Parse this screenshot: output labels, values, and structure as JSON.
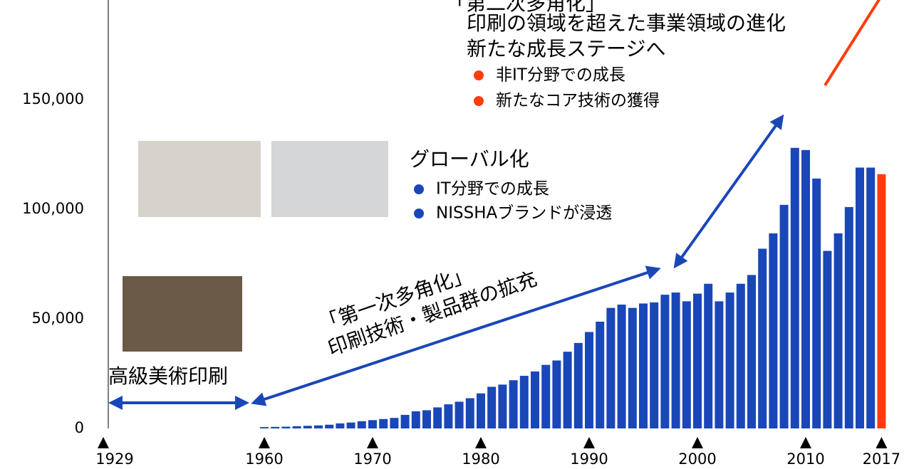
{
  "chart_data": {
    "type": "bar",
    "x": [
      1960,
      1961,
      1962,
      1963,
      1964,
      1965,
      1966,
      1967,
      1968,
      1969,
      1970,
      1971,
      1972,
      1973,
      1974,
      1975,
      1976,
      1977,
      1978,
      1979,
      1980,
      1981,
      1982,
      1983,
      1984,
      1985,
      1986,
      1987,
      1988,
      1989,
      1990,
      1991,
      1992,
      1993,
      1994,
      1995,
      1996,
      1997,
      1998,
      1999,
      2000,
      2001,
      2002,
      2003,
      2004,
      2005,
      2006,
      2007,
      2008,
      2009,
      2010,
      2011,
      2012,
      2013,
      2014,
      2015,
      2016,
      2017
    ],
    "values": [
      600,
      700,
      800,
      1000,
      1200,
      1400,
      1700,
      2300,
      2700,
      3300,
      3800,
      4300,
      4800,
      6200,
      7800,
      8300,
      9600,
      11000,
      12200,
      13800,
      16000,
      19000,
      20000,
      22000,
      24000,
      26000,
      29000,
      31000,
      35000,
      39000,
      44000,
      48700,
      55000,
      56500,
      55000,
      57000,
      57500,
      61000,
      62000,
      58000,
      61500,
      66000,
      58000,
      62000,
      66000,
      70000,
      82000,
      89000,
      102000,
      128000,
      127000,
      114000,
      81000,
      89000,
      101000,
      119000,
      119000,
      116000
    ],
    "color": "#1a47b8",
    "highlight_color": "#ff3d0b",
    "highlight_x": 2017,
    "ylim": [
      0,
      195000
    ],
    "yticks": [
      0,
      {
        "value": 50000,
        "label": "50,000"
      },
      {
        "value": 100000,
        "label": "100,000"
      },
      {
        "value": 150000,
        "label": "150,000"
      }
    ],
    "xticks": [
      1929,
      1960,
      1970,
      1980,
      1990,
      2000,
      2010,
      2017
    ],
    "annotations": {
      "stage1": "高級美術印刷",
      "stage2": {
        "title": "「第一次多角化」",
        "subtitle": "印刷技術・製品群の拡充"
      },
      "stage3": {
        "title": "グローバル化",
        "bullets": [
          "IT分野での成長",
          "NISSHAブランドが浸透"
        ]
      },
      "stage4": {
        "title": "「第二次多角化」",
        "lines": [
          "印刷の領域を超えた事業領域の進化",
          "新たな成長ステージへ"
        ],
        "bullets": [
          "非IT分野での成長",
          "新たなコア技術の獲得"
        ]
      }
    }
  }
}
